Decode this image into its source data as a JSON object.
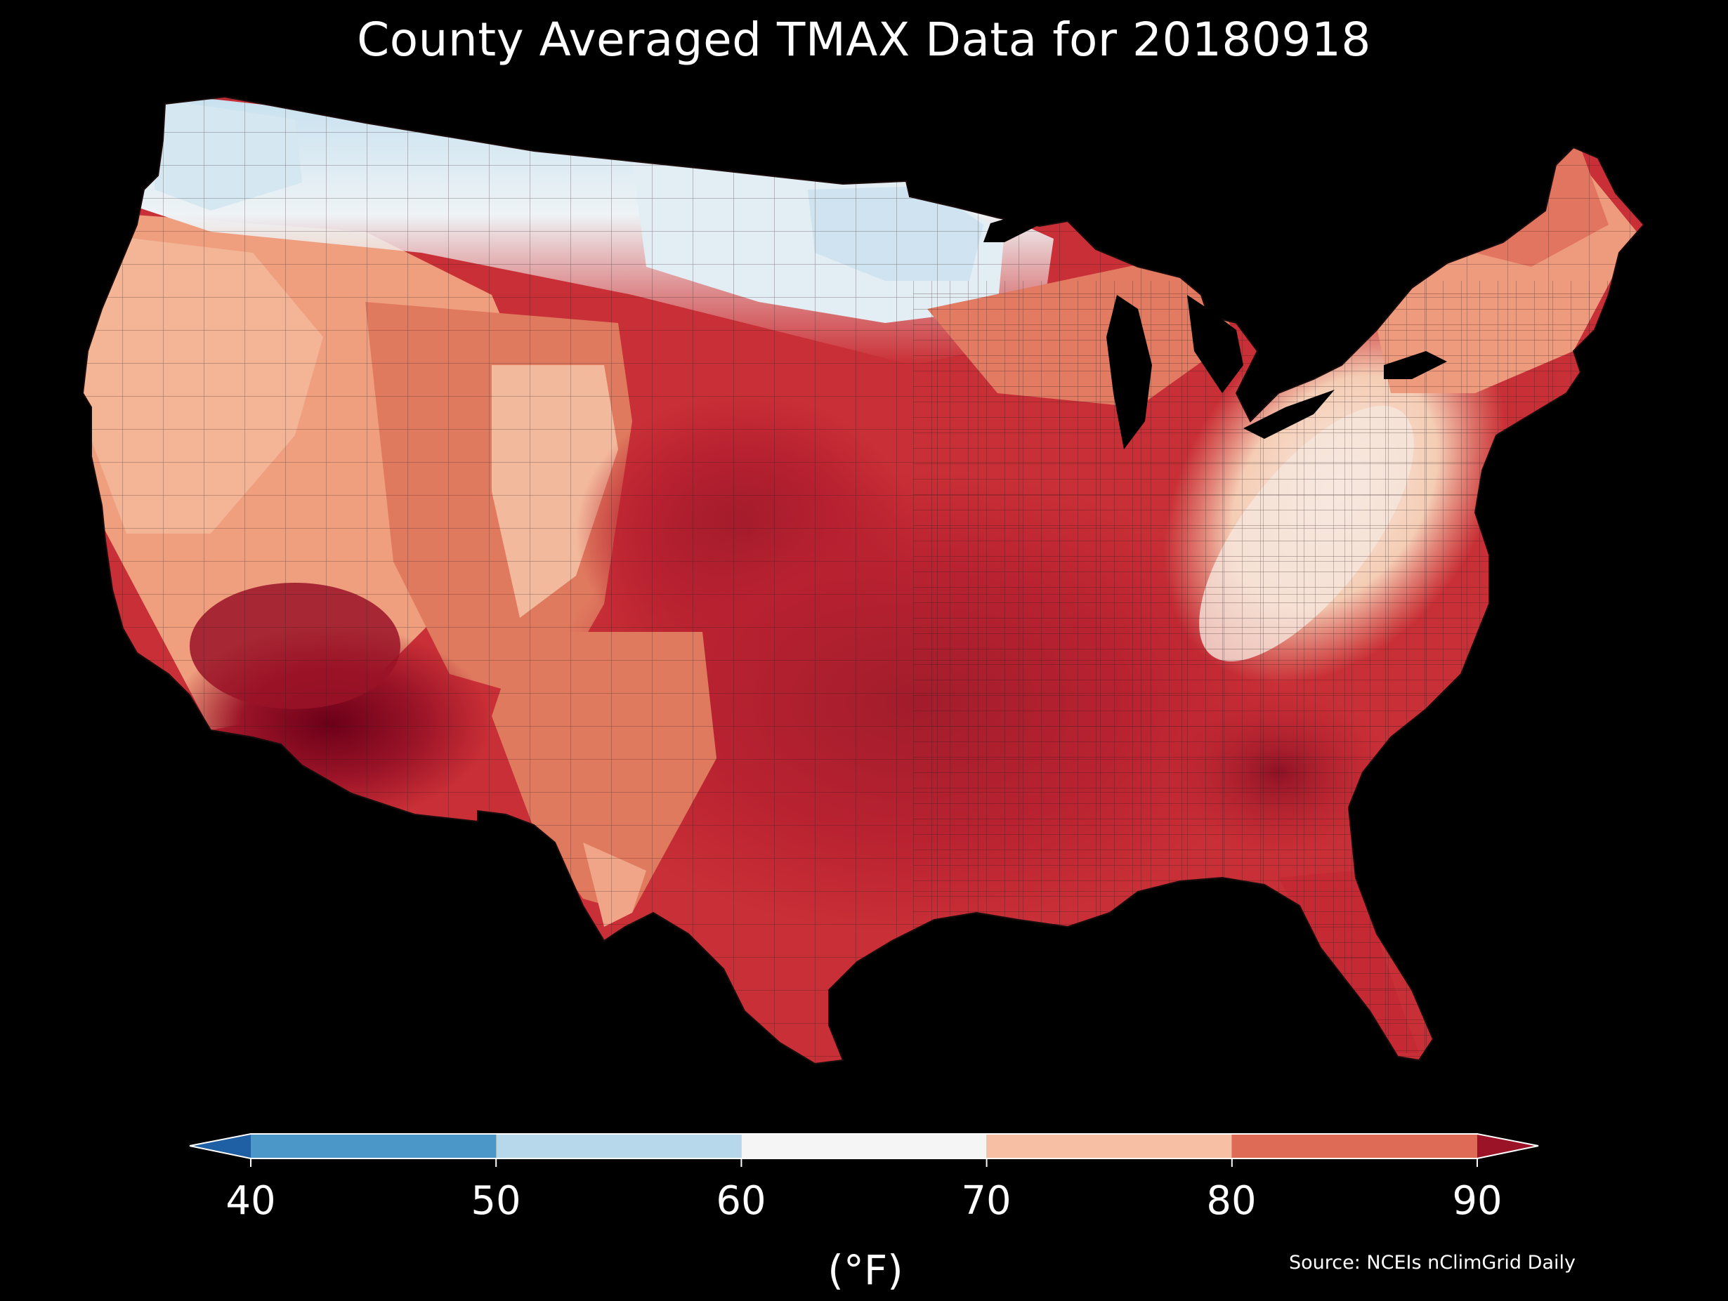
{
  "title": "County Averaged TMAX Data for 20180918",
  "source": "Source: NCEIs nClimGrid Daily",
  "colorbar": {
    "unit_label": "(°F)",
    "ticks": [
      "40",
      "50",
      "60",
      "70",
      "80",
      "90"
    ],
    "under_color": "#1f5fa3",
    "over_color": "#9a1327",
    "bins": [
      {
        "from": 40,
        "to": 50,
        "color": "#4b97c7"
      },
      {
        "from": 50,
        "to": 60,
        "color": "#b7d7ea"
      },
      {
        "from": 60,
        "to": 70,
        "color": "#f5f5f5"
      },
      {
        "from": 70,
        "to": 80,
        "color": "#f7c0a4"
      },
      {
        "from": 80,
        "to": 90,
        "color": "#dd6b55"
      }
    ]
  },
  "map": {
    "subject": "Contiguous United States counties, colored by daily maximum temperature",
    "palette": {
      "cold": "#b9dbed",
      "cool": "#e6f0f6",
      "neutral": "#f4f2f1",
      "warm": "#f5c2a4",
      "warmer": "#ec9474",
      "hot": "#d9574a",
      "hotter": "#b82130",
      "hottest": "#6b0018",
      "county_line": "#2a1a1a",
      "water": "#000000"
    }
  }
}
